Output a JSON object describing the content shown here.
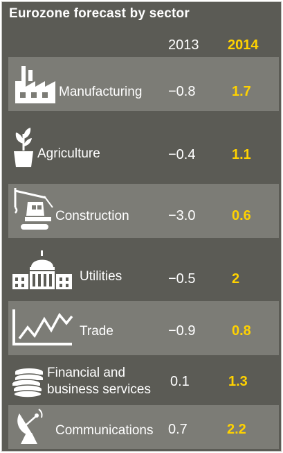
{
  "title": "Eurozone forecast by sector",
  "columns": {
    "y2013": "2013",
    "y2014": "2014"
  },
  "colors": {
    "background": "#5b5b55",
    "band": "#7c7c76",
    "text": "#ffffff",
    "accent": "#ffd200"
  },
  "rows": [
    {
      "label": "Manufacturing",
      "v2013": "−0.8",
      "v2014": "1.7",
      "icon": "factory-icon",
      "band": true
    },
    {
      "label": "Agriculture",
      "v2013": "−0.4",
      "v2014": "1.1",
      "icon": "plant-pot-icon",
      "band": false
    },
    {
      "label": "Construction",
      "v2013": "−3.0",
      "v2014": "0.6",
      "icon": "crane-icon",
      "band": true
    },
    {
      "label": "Utilities",
      "v2013": "−0.5",
      "v2014": "2",
      "icon": "government-building-icon",
      "band": false
    },
    {
      "label": "Trade",
      "v2013": "−0.9",
      "v2014": "0.8",
      "icon": "line-chart-icon",
      "band": true
    },
    {
      "label_line1": "Financial and",
      "label_line2": "business services",
      "v2013": "0.1",
      "v2014": "1.3",
      "icon": "coin-stack-icon",
      "band": false
    },
    {
      "label": "Communications",
      "v2013": "0.7",
      "v2014": "2.2",
      "icon": "satellite-dish-icon",
      "band": true
    }
  ]
}
